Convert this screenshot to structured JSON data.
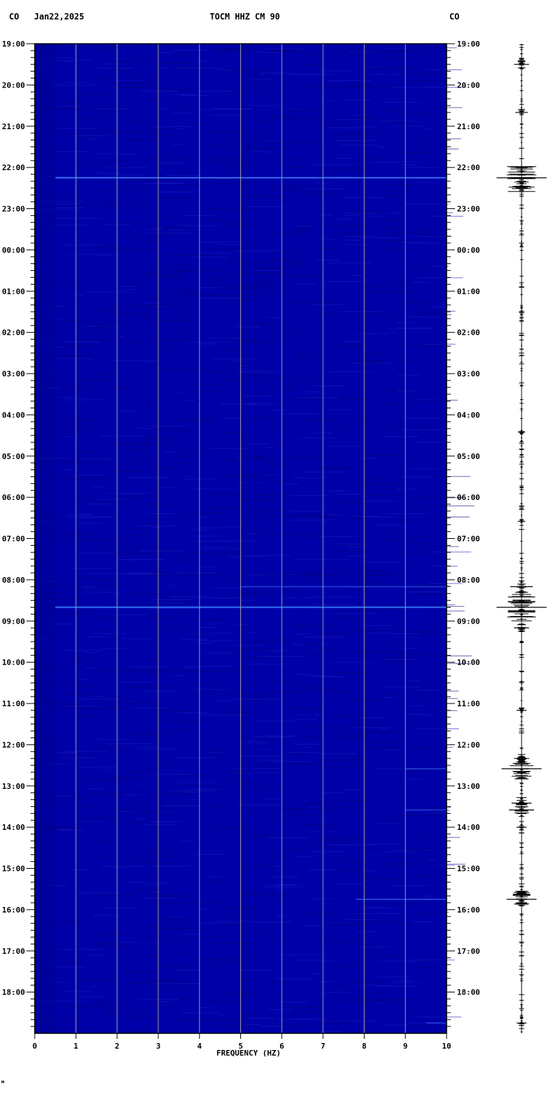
{
  "header": {
    "left_network": "CO",
    "date": "Jan22,2025",
    "title": "TOCM HHZ CM 90",
    "right_network": "CO"
  },
  "footer_mark": "м",
  "chart_data": {
    "type": "heatmap",
    "title": "TOCM HHZ CM 90",
    "xlabel": "FREQUENCY (HZ)",
    "xlim": [
      0,
      10
    ],
    "x_ticks": [
      "0",
      "1",
      "2",
      "3",
      "4",
      "5",
      "6",
      "7",
      "8",
      "9",
      "10"
    ],
    "y_ticks": [
      "19:00",
      "20:00",
      "21:00",
      "22:00",
      "23:00",
      "00:00",
      "01:00",
      "02:00",
      "03:00",
      "04:00",
      "05:00",
      "06:00",
      "07:00",
      "08:00",
      "09:00",
      "10:00",
      "11:00",
      "12:00",
      "13:00",
      "14:00",
      "15:00",
      "16:00",
      "17:00",
      "18:00"
    ],
    "y_start": "19:00",
    "hours_span": 24,
    "grid": "vertical lines every 1 Hz",
    "colors": {
      "background": "#0000a8",
      "grid": "#a0a0a0",
      "event": "#3f7fff"
    },
    "spectral_lines": [
      {
        "time": "22:15",
        "fmin": 0.5,
        "fmax": 10,
        "intensity": 0.8
      },
      {
        "time": "08:40",
        "fmin": 0.5,
        "fmax": 10,
        "intensity": 0.9
      },
      {
        "time": "08:10",
        "fmin": 5,
        "fmax": 10,
        "intensity": 0.4
      },
      {
        "time": "12:35",
        "fmin": 9,
        "fmax": 10,
        "intensity": 0.4
      },
      {
        "time": "13:35",
        "fmin": 9,
        "fmax": 10,
        "intensity": 0.4
      },
      {
        "time": "15:45",
        "fmin": 7.8,
        "fmax": 10,
        "intensity": 0.5
      },
      {
        "time": "18:45",
        "fmin": 9.5,
        "fmax": 10,
        "intensity": 0.4
      }
    ],
    "trace_events": [
      {
        "time": "19:30",
        "amp": 0.3
      },
      {
        "time": "20:40",
        "amp": 0.25
      },
      {
        "time": "22:15",
        "amp": 1.0
      },
      {
        "time": "04:25",
        "amp": 0.15
      },
      {
        "time": "06:35",
        "amp": 0.15
      },
      {
        "time": "08:10",
        "amp": 0.45
      },
      {
        "time": "08:40",
        "amp": 1.0
      },
      {
        "time": "09:10",
        "amp": 0.3
      },
      {
        "time": "11:10",
        "amp": 0.2
      },
      {
        "time": "12:20",
        "amp": 0.3
      },
      {
        "time": "12:35",
        "amp": 0.8
      },
      {
        "time": "13:25",
        "amp": 0.4
      },
      {
        "time": "13:35",
        "amp": 0.5
      },
      {
        "time": "14:00",
        "amp": 0.2
      },
      {
        "time": "15:35",
        "amp": 0.3
      },
      {
        "time": "15:45",
        "amp": 0.6
      },
      {
        "time": "18:45",
        "amp": 0.2
      }
    ]
  }
}
